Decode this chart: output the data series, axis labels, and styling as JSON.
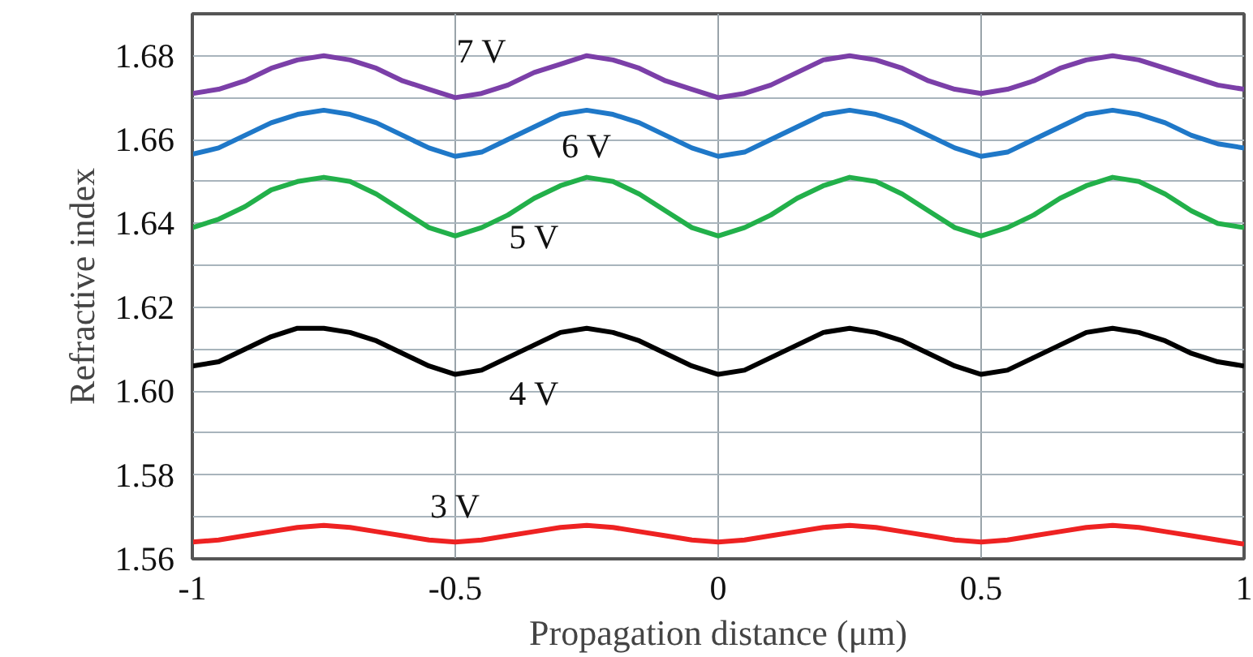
{
  "chart_data": {
    "type": "line",
    "xlabel": "Propagation distance (μm)",
    "ylabel": "Refractive index",
    "x": [
      -1,
      -0.95,
      -0.9,
      -0.85,
      -0.8,
      -0.75,
      -0.7,
      -0.65,
      -0.6,
      -0.55,
      -0.5,
      -0.45,
      -0.4,
      -0.35,
      -0.3,
      -0.25,
      -0.2,
      -0.15,
      -0.1,
      -0.05,
      0,
      0.05,
      0.1,
      0.15,
      0.2,
      0.25,
      0.3,
      0.35,
      0.4,
      0.45,
      0.5,
      0.55,
      0.6,
      0.65,
      0.7,
      0.75,
      0.8,
      0.85,
      0.9,
      0.95,
      1
    ],
    "series": [
      {
        "name": "7 V",
        "color": "#7b3fa8",
        "values": [
          1.671,
          1.672,
          1.674,
          1.677,
          1.679,
          1.68,
          1.679,
          1.677,
          1.674,
          1.672,
          1.67,
          1.671,
          1.673,
          1.676,
          1.678,
          1.68,
          1.679,
          1.677,
          1.674,
          1.672,
          1.67,
          1.671,
          1.673,
          1.676,
          1.679,
          1.68,
          1.679,
          1.677,
          1.674,
          1.672,
          1.671,
          1.672,
          1.674,
          1.677,
          1.679,
          1.68,
          1.679,
          1.677,
          1.675,
          1.673,
          1.672
        ]
      },
      {
        "name": "6 V",
        "color": "#1f78c8",
        "values": [
          1.6565,
          1.658,
          1.661,
          1.664,
          1.666,
          1.667,
          1.666,
          1.664,
          1.661,
          1.658,
          1.656,
          1.657,
          1.66,
          1.663,
          1.666,
          1.667,
          1.666,
          1.664,
          1.661,
          1.658,
          1.656,
          1.657,
          1.66,
          1.663,
          1.666,
          1.667,
          1.666,
          1.664,
          1.661,
          1.658,
          1.656,
          1.657,
          1.66,
          1.663,
          1.666,
          1.667,
          1.666,
          1.664,
          1.661,
          1.659,
          1.658
        ]
      },
      {
        "name": "5 V",
        "color": "#22b04a",
        "values": [
          1.639,
          1.641,
          1.644,
          1.648,
          1.65,
          1.651,
          1.65,
          1.647,
          1.643,
          1.639,
          1.637,
          1.639,
          1.642,
          1.646,
          1.649,
          1.651,
          1.65,
          1.647,
          1.643,
          1.639,
          1.637,
          1.639,
          1.642,
          1.646,
          1.649,
          1.651,
          1.65,
          1.647,
          1.643,
          1.639,
          1.637,
          1.639,
          1.642,
          1.646,
          1.649,
          1.651,
          1.65,
          1.647,
          1.643,
          1.64,
          1.639
        ]
      },
      {
        "name": "4 V",
        "color": "#000000",
        "values": [
          1.606,
          1.607,
          1.61,
          1.613,
          1.615,
          1.615,
          1.614,
          1.612,
          1.609,
          1.606,
          1.604,
          1.605,
          1.608,
          1.611,
          1.614,
          1.615,
          1.614,
          1.612,
          1.609,
          1.606,
          1.604,
          1.605,
          1.608,
          1.611,
          1.614,
          1.615,
          1.614,
          1.612,
          1.609,
          1.606,
          1.604,
          1.605,
          1.608,
          1.611,
          1.614,
          1.615,
          1.614,
          1.612,
          1.609,
          1.607,
          1.606
        ]
      },
      {
        "name": "3 V",
        "color": "#ee2222",
        "values": [
          1.564,
          1.5645,
          1.5655,
          1.5665,
          1.5675,
          1.568,
          1.5675,
          1.5665,
          1.5655,
          1.5645,
          1.564,
          1.5645,
          1.5655,
          1.5665,
          1.5675,
          1.568,
          1.5675,
          1.5665,
          1.5655,
          1.5645,
          1.564,
          1.5645,
          1.5655,
          1.5665,
          1.5675,
          1.568,
          1.5675,
          1.5665,
          1.5655,
          1.5645,
          1.564,
          1.5645,
          1.5655,
          1.5665,
          1.5675,
          1.568,
          1.5675,
          1.5665,
          1.5655,
          1.5645,
          1.5635
        ]
      }
    ],
    "xlim": [
      -1,
      1
    ],
    "ylim": [
      1.56,
      1.69
    ],
    "xticks": [
      -1,
      -0.5,
      0,
      0.5,
      1
    ],
    "yticks": [
      1.56,
      {
        "value": 1.57,
        "label": null
      },
      1.58,
      {
        "value": 1.59,
        "label": null
      },
      {
        "value": 1.6,
        "label": "1.60"
      },
      {
        "value": 1.61,
        "label": null
      },
      1.62,
      {
        "value": 1.63,
        "label": null
      },
      1.64,
      {
        "value": 1.65,
        "label": null
      },
      1.66,
      {
        "value": 1.67,
        "label": null
      },
      1.68
    ],
    "grid": true,
    "legend": false,
    "marker": "none",
    "line_style": "solid"
  }
}
